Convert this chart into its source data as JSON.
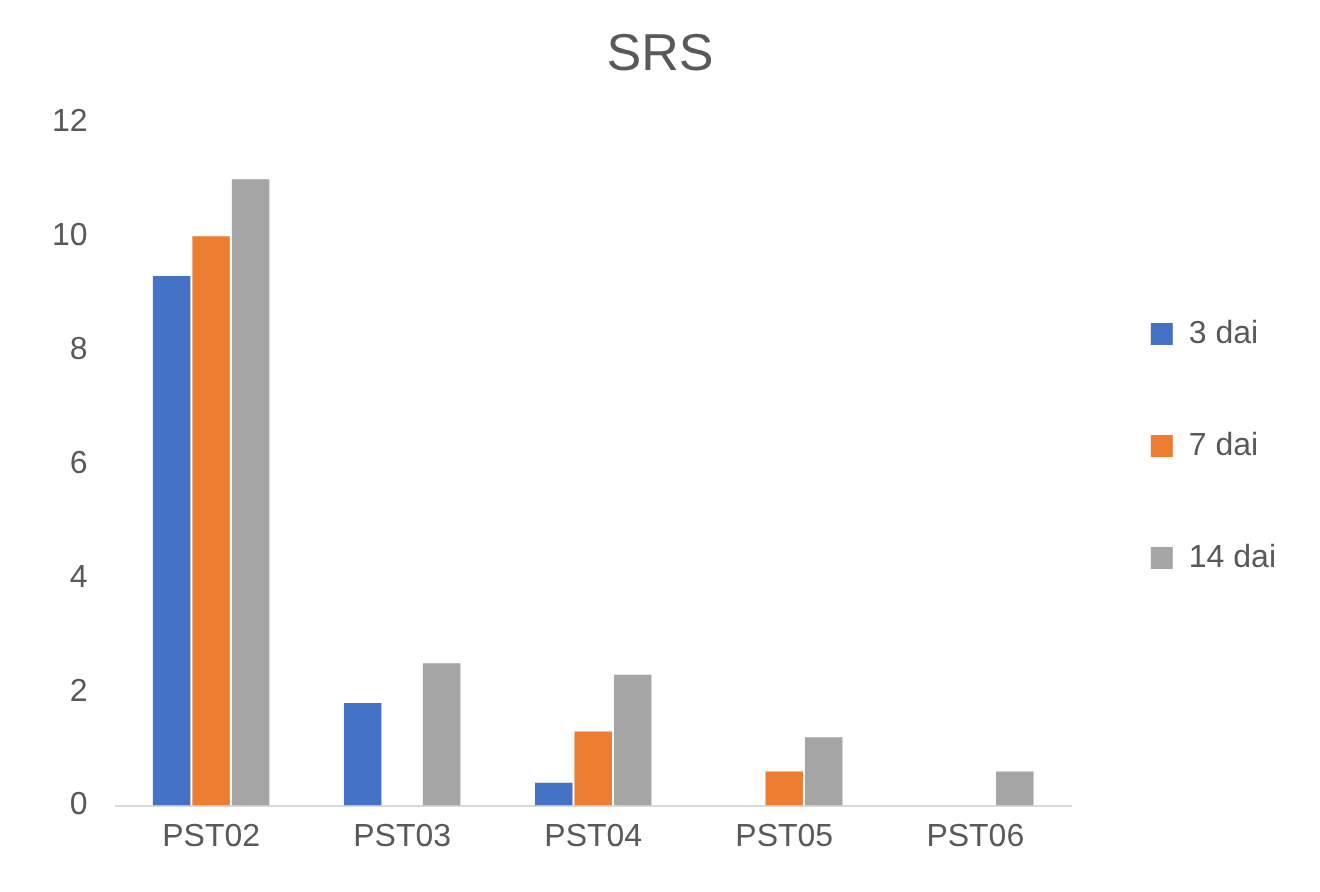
{
  "chart_data": {
    "type": "bar",
    "title": "SRS",
    "categories": [
      "PST02",
      "PST03",
      "PST04",
      "PST05",
      "PST06"
    ],
    "series": [
      {
        "name": "3 dai",
        "color": "#4472c4",
        "values": [
          9.3,
          1.8,
          0.4,
          null,
          null
        ]
      },
      {
        "name": "7 dai",
        "color": "#ed7d31",
        "values": [
          10,
          null,
          1.3,
          0.6,
          null
        ]
      },
      {
        "name": "14 dai",
        "color": "#a5a5a5",
        "values": [
          11,
          2.5,
          2.3,
          1.2,
          0.6
        ]
      }
    ],
    "ylim": [
      0,
      12
    ],
    "yticks": [
      0,
      2,
      4,
      6,
      8,
      10,
      12
    ],
    "grid": false,
    "legend": "right"
  }
}
